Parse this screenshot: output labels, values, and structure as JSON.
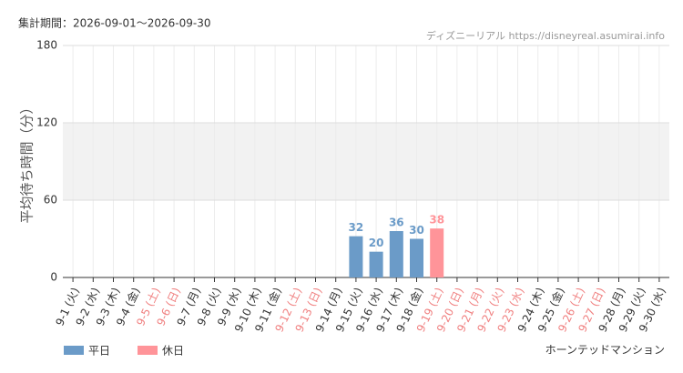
{
  "header": "集計期間：2026-09-01〜2026-09-30",
  "site": "ディズニーリアル https://disneyreal.asumirai.info",
  "attraction": "ホーンテッドマンション",
  "chart_data": {
    "type": "bar",
    "y_label": "平均待ち時間（分）",
    "categories": [
      "9-1 (火)",
      "9-2 (水)",
      "9-3 (木)",
      "9-4 (金)",
      "9-5 (土)",
      "9-6 (日)",
      "9-7 (月)",
      "9-8 (火)",
      "9-9 (水)",
      "9-10 (木)",
      "9-11 (金)",
      "9-12 (土)",
      "9-13 (日)",
      "9-14 (月)",
      "9-15 (火)",
      "9-16 (水)",
      "9-17 (木)",
      "9-18 (金)",
      "9-19 (土)",
      "9-20 (日)",
      "9-21 (月)",
      "9-22 (火)",
      "9-23 (水)",
      "9-24 (木)",
      "9-25 (金)",
      "9-26 (土)",
      "9-27 (日)",
      "9-28 (月)",
      "9-29 (火)",
      "9-30 (水)"
    ],
    "category_colors": [
      "#333",
      "#333",
      "#333",
      "#333",
      "#f08080",
      "#f08080",
      "#333",
      "#333",
      "#333",
      "#333",
      "#333",
      "#f08080",
      "#f08080",
      "#333",
      "#333",
      "#333",
      "#333",
      "#333",
      "#f08080",
      "#f08080",
      "#f08080",
      "#f08080",
      "#f08080",
      "#333",
      "#333",
      "#f08080",
      "#f08080",
      "#333",
      "#333",
      "#333"
    ],
    "series": [
      {
        "name": "平日",
        "color": "#6b9bc8",
        "values": [
          null,
          null,
          null,
          null,
          null,
          null,
          null,
          null,
          null,
          null,
          null,
          null,
          null,
          null,
          32,
          20,
          36,
          30,
          null,
          null,
          null,
          null,
          null,
          null,
          null,
          null,
          null,
          null,
          null,
          null
        ]
      },
      {
        "name": "休日",
        "color": "#ff9499",
        "values": [
          null,
          null,
          null,
          null,
          null,
          null,
          null,
          null,
          null,
          null,
          null,
          null,
          null,
          null,
          null,
          null,
          null,
          null,
          38,
          null,
          null,
          null,
          null,
          null,
          null,
          null,
          null,
          null,
          null,
          null
        ]
      }
    ],
    "ylim": [
      0,
      180
    ],
    "yticks": [
      0,
      60,
      120,
      180
    ],
    "grid": true
  }
}
